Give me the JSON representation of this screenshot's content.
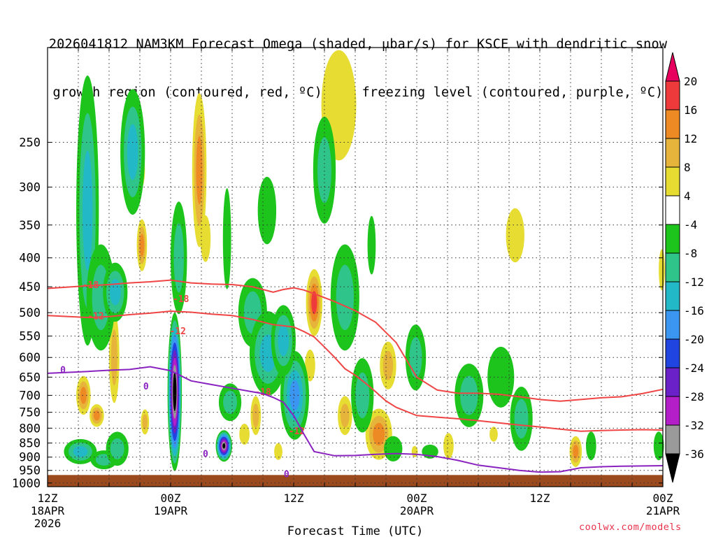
{
  "title": {
    "line1": "2026041812 NAM3KM Forecast Omega (shaded, μbar/s) for KSCE with dendritic snow",
    "line2": "growth region (contoured, red, ºC) and freezing level (contoured, purple, ºC)"
  },
  "credit": "coolwx.com/models",
  "chart_data": {
    "type": "heatmap",
    "title": "2026041812 NAM3KM Forecast Omega (shaded, μbar/s) for KSCE with dendritic snow growth region (contoured, red, ºC) and freezing level (contoured, purple, ºC)",
    "xlabel": "Forecast Time (UTC)",
    "ylabel": "",
    "x_ticks": [
      {
        "hour": 0,
        "lines": [
          "12Z",
          "18APR",
          "2026"
        ]
      },
      {
        "hour": 12,
        "lines": [
          "00Z",
          "19APR"
        ]
      },
      {
        "hour": 24,
        "lines": [
          "12Z"
        ]
      },
      {
        "hour": 36,
        "lines": [
          "00Z",
          "20APR"
        ]
      },
      {
        "hour": 48,
        "lines": [
          "12Z"
        ]
      },
      {
        "hour": 60,
        "lines": [
          "00Z",
          "21APR"
        ]
      }
    ],
    "xlim": [
      0,
      60
    ],
    "y_ticks": [
      250,
      300,
      350,
      400,
      450,
      500,
      550,
      600,
      650,
      700,
      750,
      800,
      850,
      900,
      950,
      1000
    ],
    "ylim": [
      1015,
      170
    ],
    "y_scale": "log",
    "grid": true,
    "colorbar": {
      "labels": [
        "20",
        "16",
        "12",
        "8",
        "4",
        "-4",
        "-8",
        "-12",
        "-16",
        "-20",
        "-24",
        "-28",
        "-32",
        "-36"
      ],
      "colors": [
        "#e8005e",
        "#ee3a3a",
        "#ee8a24",
        "#e6b43a",
        "#e6dc32",
        "#ffffff",
        "#1cc41c",
        "#2ec48a",
        "#22b8c8",
        "#3a96f0",
        "#2044e0",
        "#6a22c8",
        "#b41ec8",
        "#9a9a9a",
        "#000000"
      ]
    },
    "surface_color": "#9b4a1e",
    "contours": [
      {
        "label": "-18",
        "color": "#f04545",
        "points": [
          [
            0,
            453
          ],
          [
            4,
            448
          ],
          [
            6,
            446
          ],
          [
            8,
            443
          ],
          [
            10,
            441
          ],
          [
            12,
            438
          ],
          [
            14,
            443
          ],
          [
            16,
            445
          ],
          [
            18,
            446
          ],
          [
            20,
            450
          ],
          [
            22,
            460
          ],
          [
            23,
            455
          ],
          [
            24,
            452
          ],
          [
            25,
            456
          ],
          [
            26,
            463
          ],
          [
            28,
            478
          ],
          [
            30,
            496
          ],
          [
            32,
            520
          ],
          [
            34,
            565
          ],
          [
            36,
            650
          ],
          [
            38,
            685
          ],
          [
            40,
            694
          ],
          [
            42,
            694
          ],
          [
            44,
            697
          ],
          [
            46,
            704
          ],
          [
            48,
            712
          ],
          [
            50,
            717
          ],
          [
            52,
            712
          ],
          [
            54,
            707
          ],
          [
            56,
            704
          ],
          [
            58,
            695
          ],
          [
            60,
            683
          ]
        ],
        "label_at": [
          [
            4.2,
            446
          ],
          [
            13,
            472
          ],
          [
            21,
            689
          ]
        ]
      },
      {
        "label": "-12",
        "color": "#f04545",
        "points": [
          [
            0,
            506
          ],
          [
            4,
            510
          ],
          [
            6,
            508
          ],
          [
            8,
            504
          ],
          [
            10,
            501
          ],
          [
            12,
            497
          ],
          [
            14,
            499
          ],
          [
            16,
            503
          ],
          [
            18,
            506
          ],
          [
            20,
            514
          ],
          [
            22,
            525
          ],
          [
            24,
            530
          ],
          [
            25,
            540
          ],
          [
            26,
            552
          ],
          [
            27,
            575
          ],
          [
            28,
            600
          ],
          [
            29,
            628
          ],
          [
            30,
            645
          ],
          [
            31,
            666
          ],
          [
            32,
            690
          ],
          [
            33,
            716
          ],
          [
            34,
            735
          ],
          [
            36,
            760
          ],
          [
            38,
            765
          ],
          [
            40,
            770
          ],
          [
            42,
            776
          ],
          [
            44,
            783
          ],
          [
            46,
            790
          ],
          [
            48,
            796
          ],
          [
            50,
            803
          ],
          [
            52,
            810
          ],
          [
            54,
            808
          ],
          [
            56,
            806
          ],
          [
            58,
            805
          ],
          [
            60,
            806
          ]
        ],
        "label_at": [
          [
            4.7,
            506
          ],
          [
            12.7,
            538
          ],
          [
            24.3,
            808
          ]
        ]
      },
      {
        "label": "0",
        "color": "#8a22c0",
        "points": [
          [
            0,
            640
          ],
          [
            4,
            635
          ],
          [
            6,
            632
          ],
          [
            8,
            630
          ],
          [
            10,
            623
          ],
          [
            12,
            633
          ],
          [
            14,
            660
          ],
          [
            16,
            670
          ],
          [
            18,
            680
          ],
          [
            20,
            690
          ],
          [
            21,
            695
          ],
          [
            22,
            706
          ],
          [
            23,
            720
          ],
          [
            24,
            760
          ],
          [
            25,
            820
          ],
          [
            26,
            880
          ],
          [
            28,
            895
          ],
          [
            30,
            894
          ],
          [
            32,
            890
          ],
          [
            34,
            887
          ],
          [
            36,
            890
          ],
          [
            38,
            898
          ],
          [
            40,
            912
          ],
          [
            42,
            930
          ],
          [
            44,
            940
          ],
          [
            46,
            950
          ],
          [
            48,
            957
          ],
          [
            50,
            955
          ],
          [
            52,
            940
          ],
          [
            54,
            936
          ],
          [
            56,
            934
          ],
          [
            58,
            933
          ],
          [
            60,
            932
          ]
        ],
        "label_at": [
          [
            1.5,
            630
          ],
          [
            9.6,
            674
          ],
          [
            15.4,
            887
          ],
          [
            23.3,
            963
          ]
        ]
      }
    ],
    "omega_features": [
      {
        "center": [
          3.5,
          700
        ],
        "size": [
          0.7,
          110
        ],
        "sign": "up",
        "peak": 14
      },
      {
        "center": [
          4.8,
          760
        ],
        "size": [
          0.7,
          70
        ],
        "sign": "up",
        "peak": 12
      },
      {
        "center": [
          6.5,
          600
        ],
        "size": [
          0.5,
          220
        ],
        "sign": "up",
        "peak": 8
      },
      {
        "center": [
          8.7,
          280
        ],
        "size": [
          0.8,
          55
        ],
        "sign": "up",
        "peak": 6
      },
      {
        "center": [
          9.2,
          380
        ],
        "size": [
          0.5,
          80
        ],
        "sign": "up",
        "peak": 12
      },
      {
        "center": [
          9.5,
          780
        ],
        "size": [
          0.4,
          80
        ],
        "sign": "up",
        "peak": 8
      },
      {
        "center": [
          14.8,
          280
        ],
        "size": [
          0.7,
          170
        ],
        "sign": "up",
        "peak": 14
      },
      {
        "center": [
          15.4,
          370
        ],
        "size": [
          0.5,
          70
        ],
        "sign": "up",
        "peak": 6
      },
      {
        "center": [
          19.2,
          820
        ],
        "size": [
          0.5,
          70
        ],
        "sign": "up",
        "peak": 6
      },
      {
        "center": [
          20.3,
          760
        ],
        "size": [
          0.5,
          120
        ],
        "sign": "up",
        "peak": 8
      },
      {
        "center": [
          22.5,
          880
        ],
        "size": [
          0.4,
          60
        ],
        "sign": "up",
        "peak": 6
      },
      {
        "center": [
          26.0,
          480
        ],
        "size": [
          0.8,
          130
        ],
        "sign": "up",
        "peak": 16
      },
      {
        "center": [
          25.6,
          620
        ],
        "size": [
          0.5,
          80
        ],
        "sign": "up",
        "peak": 6
      },
      {
        "center": [
          29.0,
          760
        ],
        "size": [
          0.7,
          120
        ],
        "sign": "up",
        "peak": 10
      },
      {
        "center": [
          32.3,
          820
        ],
        "size": [
          1.3,
          170
        ],
        "sign": "up",
        "peak": 14
      },
      {
        "center": [
          33.2,
          620
        ],
        "size": [
          0.8,
          120
        ],
        "sign": "up",
        "peak": 8
      },
      {
        "center": [
          35.8,
          880
        ],
        "size": [
          0.3,
          40
        ],
        "sign": "up",
        "peak": 5
      },
      {
        "center": [
          39.1,
          860
        ],
        "size": [
          0.5,
          90
        ],
        "sign": "up",
        "peak": 6
      },
      {
        "center": [
          43.5,
          820
        ],
        "size": [
          0.4,
          50
        ],
        "sign": "up",
        "peak": 5
      },
      {
        "center": [
          45.6,
          365
        ],
        "size": [
          0.9,
          80
        ],
        "sign": "up",
        "peak": 6
      },
      {
        "center": [
          51.5,
          880
        ],
        "size": [
          0.6,
          110
        ],
        "sign": "up",
        "peak": 14
      },
      {
        "center": [
          59.9,
          420
        ],
        "size": [
          0.3,
          70
        ],
        "sign": "up",
        "peak": 6
      },
      {
        "center": [
          28.4,
          215
        ],
        "size": [
          1.7,
          95
        ],
        "sign": "up",
        "peak": 6
      },
      {
        "center": [
          3.9,
          330
        ],
        "size": [
          1.1,
          330
        ],
        "sign": "down",
        "peak": -12
      },
      {
        "center": [
          5.2,
          470
        ],
        "size": [
          1.4,
          200
        ],
        "sign": "down",
        "peak": -10
      },
      {
        "center": [
          6.6,
          460
        ],
        "size": [
          1.2,
          110
        ],
        "sign": "down",
        "peak": -14
      },
      {
        "center": [
          3.2,
          880
        ],
        "size": [
          1.6,
          90
        ],
        "sign": "down",
        "peak": -12
      },
      {
        "center": [
          5.5,
          910
        ],
        "size": [
          1.3,
          70
        ],
        "sign": "down",
        "peak": -8
      },
      {
        "center": [
          6.8,
          870
        ],
        "size": [
          1.1,
          120
        ],
        "sign": "down",
        "peak": -10
      },
      {
        "center": [
          8.3,
          260
        ],
        "size": [
          1.2,
          130
        ],
        "sign": "down",
        "peak": -14
      },
      {
        "center": [
          12.4,
          690
        ],
        "size": [
          0.7,
          430
        ],
        "sign": "down",
        "peak": -40
      },
      {
        "center": [
          12.8,
          400
        ],
        "size": [
          0.8,
          180
        ],
        "sign": "down",
        "peak": -8
      },
      {
        "center": [
          17.2,
          860
        ],
        "size": [
          0.8,
          110
        ],
        "sign": "down",
        "peak": -36
      },
      {
        "center": [
          17.8,
          720
        ],
        "size": [
          1.1,
          110
        ],
        "sign": "down",
        "peak": -8
      },
      {
        "center": [
          17.5,
          370
        ],
        "size": [
          0.4,
          150
        ],
        "sign": "down",
        "peak": -6
      },
      {
        "center": [
          20.0,
          500
        ],
        "size": [
          1.4,
          140
        ],
        "sign": "down",
        "peak": -10
      },
      {
        "center": [
          21.5,
          590
        ],
        "size": [
          1.8,
          200
        ],
        "sign": "down",
        "peak": -14
      },
      {
        "center": [
          24.1,
          700
        ],
        "size": [
          1.4,
          250
        ],
        "sign": "down",
        "peak": -16
      },
      {
        "center": [
          23.0,
          560
        ],
        "size": [
          1.2,
          160
        ],
        "sign": "down",
        "peak": -12
      },
      {
        "center": [
          21.4,
          330
        ],
        "size": [
          0.9,
          90
        ],
        "sign": "down",
        "peak": -6
      },
      {
        "center": [
          27.0,
          280
        ],
        "size": [
          1.1,
          120
        ],
        "sign": "down",
        "peak": -8
      },
      {
        "center": [
          29.0,
          470
        ],
        "size": [
          1.4,
          200
        ],
        "sign": "down",
        "peak": -8
      },
      {
        "center": [
          30.7,
          700
        ],
        "size": [
          1.1,
          210
        ],
        "sign": "down",
        "peak": -10
      },
      {
        "center": [
          31.6,
          380
        ],
        "size": [
          0.4,
          90
        ],
        "sign": "down",
        "peak": -6
      },
      {
        "center": [
          33.7,
          870
        ],
        "size": [
          0.9,
          90
        ],
        "sign": "down",
        "peak": -6
      },
      {
        "center": [
          35.9,
          600
        ],
        "size": [
          1.0,
          160
        ],
        "sign": "down",
        "peak": -8
      },
      {
        "center": [
          37.3,
          880
        ],
        "size": [
          0.8,
          50
        ],
        "sign": "down",
        "peak": -6
      },
      {
        "center": [
          41.1,
          700
        ],
        "size": [
          1.4,
          180
        ],
        "sign": "down",
        "peak": -8
      },
      {
        "center": [
          44.2,
          650
        ],
        "size": [
          1.3,
          160
        ],
        "sign": "down",
        "peak": -6
      },
      {
        "center": [
          46.2,
          770
        ],
        "size": [
          1.1,
          200
        ],
        "sign": "down",
        "peak": -8
      },
      {
        "center": [
          53.0,
          860
        ],
        "size": [
          0.5,
          100
        ],
        "sign": "down",
        "peak": -6
      },
      {
        "center": [
          59.6,
          860
        ],
        "size": [
          0.5,
          100
        ],
        "sign": "down",
        "peak": -6
      }
    ]
  }
}
